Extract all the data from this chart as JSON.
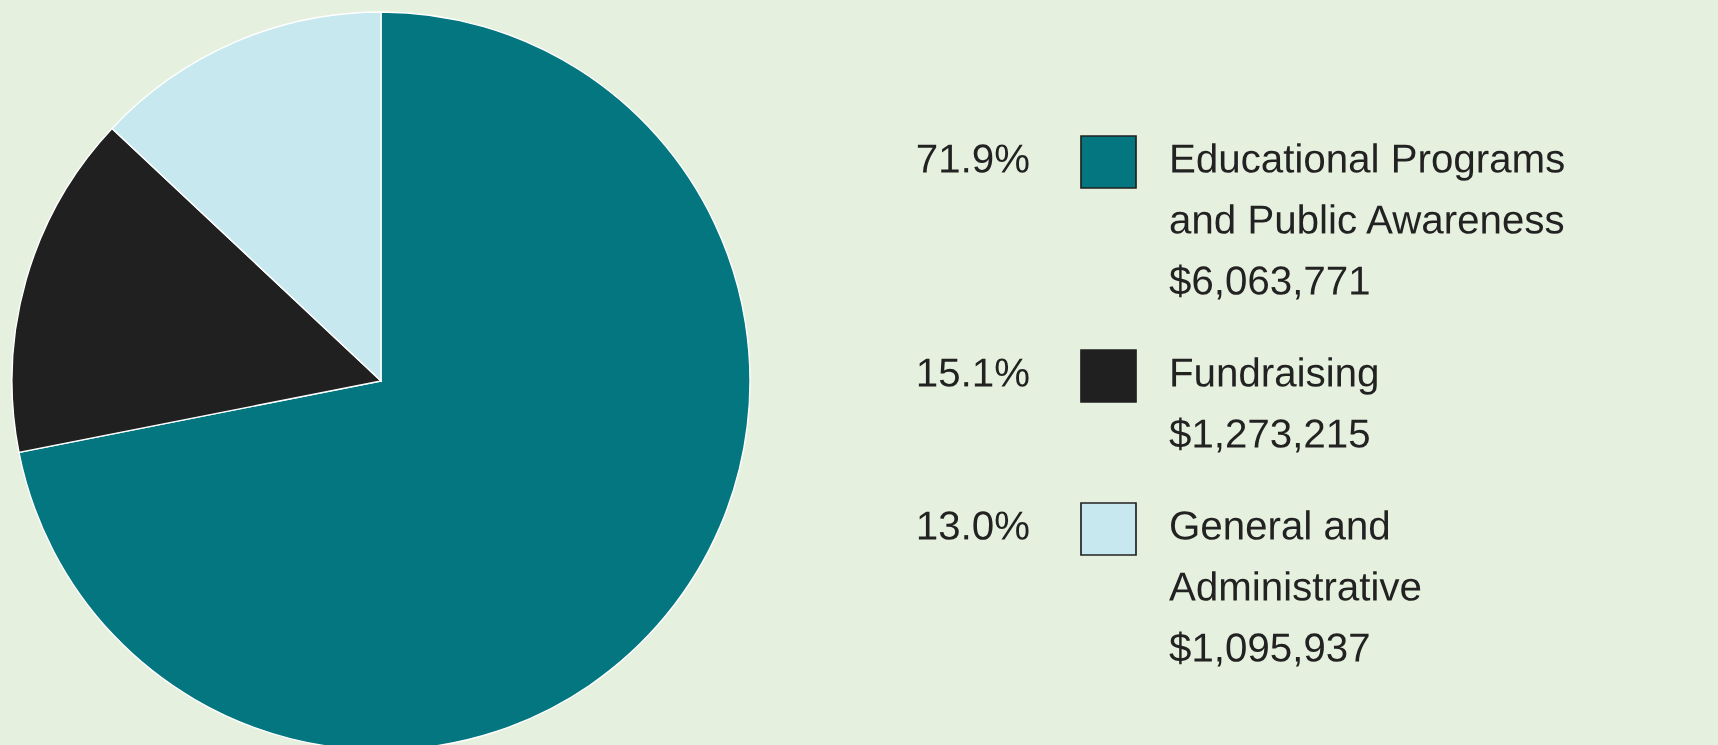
{
  "chart_data": {
    "type": "pie",
    "categories": [
      "Educational Programs\nand Public Awareness",
      "Fundraising",
      "General and\nAdministrative"
    ],
    "values": [
      71.9,
      15.1,
      13.0
    ],
    "value_labels": [
      "71.9%",
      "15.1%",
      "13.0%"
    ],
    "colors": [
      "#037680",
      "#202020",
      "#c8e8f0"
    ],
    "annotations": [
      "$6,063,771",
      "$1,273,215",
      "$1,095,937"
    ],
    "legend": "right"
  }
}
